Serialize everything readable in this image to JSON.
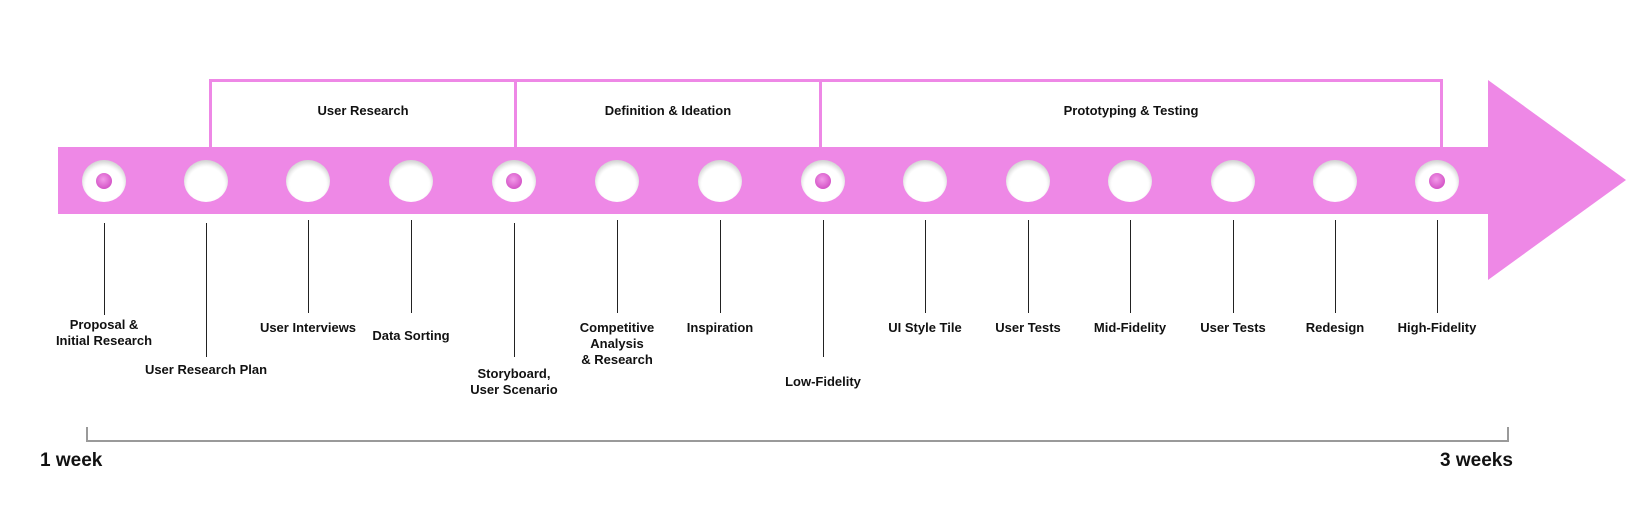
{
  "colors": {
    "accent": "#ee88e6",
    "milestone_dot": "#d557c8",
    "scale": "#9a9a9a"
  },
  "phases": [
    {
      "label": "User Research"
    },
    {
      "label": "Definition & Ideation"
    },
    {
      "label": "Prototyping & Testing"
    }
  ],
  "steps": [
    {
      "label": "Proposal &\nInitial Research",
      "milestone": true
    },
    {
      "label": "User Research Plan",
      "milestone": false
    },
    {
      "label": "User Interviews",
      "milestone": false
    },
    {
      "label": "Data Sorting",
      "milestone": false
    },
    {
      "label": "Storyboard,\nUser Scenario",
      "milestone": true
    },
    {
      "label": "Competitive\nAnalysis\n& Research",
      "milestone": false
    },
    {
      "label": "Inspiration",
      "milestone": false
    },
    {
      "label": "Low-Fidelity",
      "milestone": true
    },
    {
      "label": "UI Style Tile",
      "milestone": false
    },
    {
      "label": "User Tests",
      "milestone": false
    },
    {
      "label": "Mid-Fidelity",
      "milestone": false
    },
    {
      "label": "User Tests",
      "milestone": false
    },
    {
      "label": "Redesign",
      "milestone": false
    },
    {
      "label": "High-Fidelity",
      "milestone": true
    }
  ],
  "scale": {
    "start_label": "1 week",
    "end_label": "3 weeks"
  }
}
